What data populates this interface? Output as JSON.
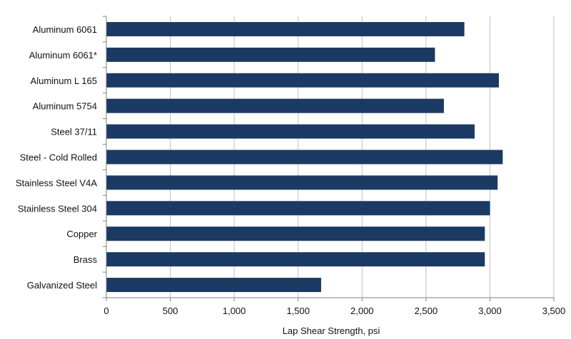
{
  "chart_data": {
    "type": "bar",
    "orientation": "horizontal",
    "title": "",
    "xlabel": "Lap Shear Strength, psi",
    "ylabel": "",
    "xlim": [
      0,
      3500
    ],
    "x_ticks": [
      0,
      500,
      1000,
      1500,
      2000,
      2500,
      3000,
      3500
    ],
    "x_tick_labels": [
      "0",
      "500",
      "1,000",
      "1,500",
      "2,000",
      "2,500",
      "3,000",
      "3,500"
    ],
    "grid": "vertical",
    "categories": [
      "Aluminum 6061",
      "Aluminum 6061*",
      "Aluminum L 165",
      "Aluminum 5754",
      "Steel 37/11",
      "Steel - Cold Rolled",
      "Stainless Steel V4A",
      "Stainless Steel 304",
      "Copper",
      "Brass",
      "Galvanized Steel"
    ],
    "values": [
      2800,
      2570,
      3070,
      2640,
      2880,
      3100,
      3060,
      3000,
      2960,
      2960,
      1680
    ],
    "bar_color": "#1b3a63",
    "grid_color": "#bfbfbf",
    "axis_color": "#7f7f7f"
  }
}
